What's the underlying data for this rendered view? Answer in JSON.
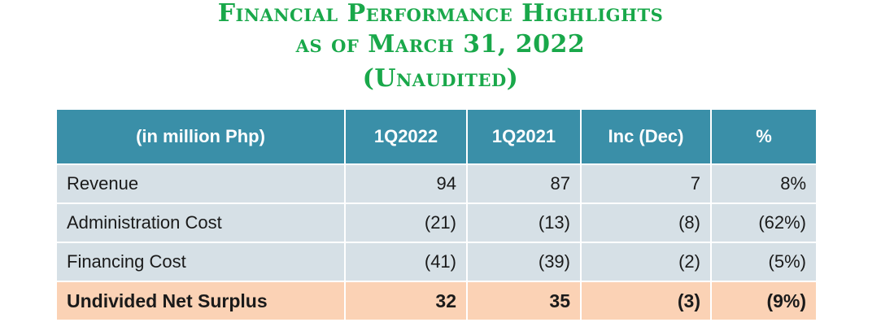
{
  "title": {
    "line1": "Financial Performance Highlights",
    "line2": "as of March 31, 2022",
    "line3": "(Unaudited)"
  },
  "table": {
    "headers": [
      "(in million Php)",
      "1Q2022",
      "1Q2021",
      "Inc (Dec)",
      "%"
    ],
    "rows": [
      {
        "label": "Revenue",
        "q2022": "94",
        "q2021": "87",
        "inc": "7",
        "pct": "8%"
      },
      {
        "label": "Administration Cost",
        "q2022": "(21)",
        "q2021": "(13)",
        "inc": "(8)",
        "pct": "(62%)"
      },
      {
        "label": "Financing Cost",
        "q2022": "(41)",
        "q2021": "(39)",
        "inc": "(2)",
        "pct": "(5%)"
      }
    ],
    "total": {
      "label": "Undivided Net Surplus",
      "q2022": "32",
      "q2021": "35",
      "inc": "(3)",
      "pct": "(9%)"
    }
  },
  "colors": {
    "title": "#19a84a",
    "header_bg": "#3a8fa8",
    "row_bg": "#d6e0e6",
    "total_bg": "#fbd2b5"
  }
}
